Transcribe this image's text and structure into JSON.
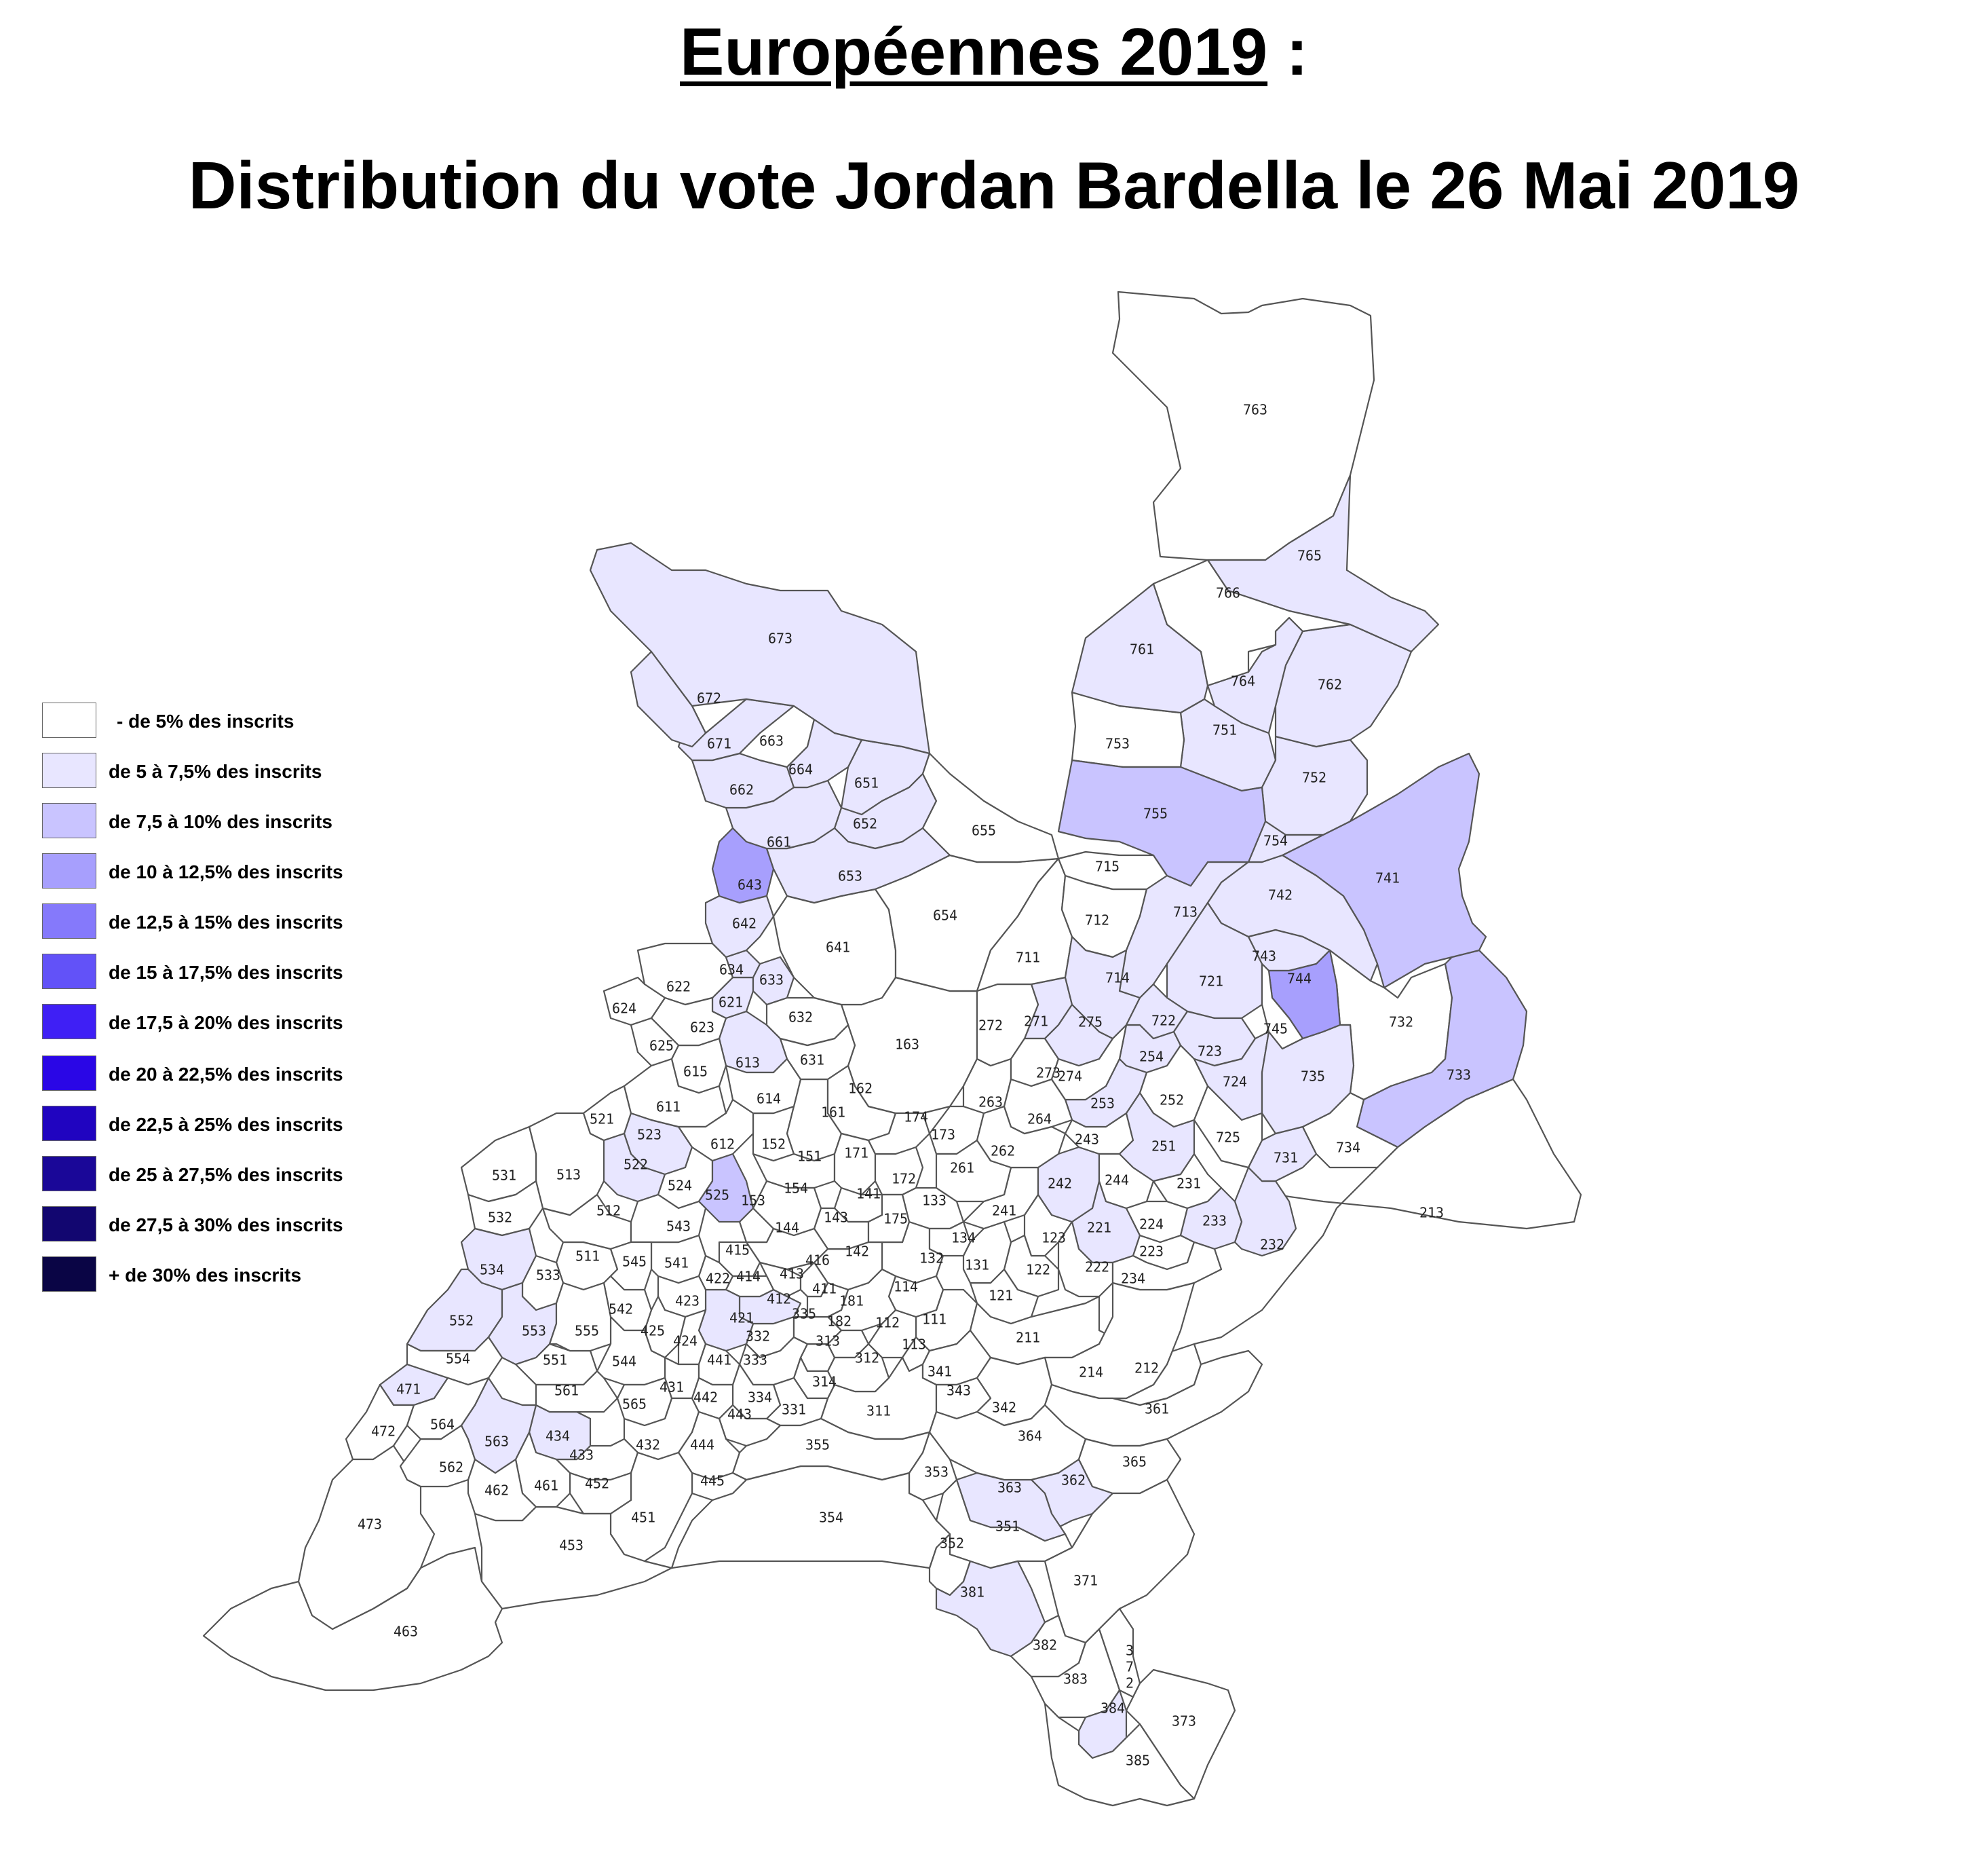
{
  "title": {
    "line1_main": "Européennes 2019",
    "line1_suffix": " :",
    "line2": "Distribution du vote Jordan Bardella le 26 Mai 2019"
  },
  "colors": {
    "c0": "#ffffff",
    "c1": "#e8e6ff",
    "c2": "#c9c4ff",
    "c3": "#a79ffd",
    "c4": "#8579fb",
    "c5": "#6252f8",
    "c6": "#3f1ff5",
    "c7": "#2a06e6",
    "c8": "#2004c0",
    "c9": "#1a0798",
    "c10": "#120670",
    "c11": "#0a0545"
  },
  "legend": [
    {
      "label": "- de 5% des inscrits",
      "color": "#ffffff"
    },
    {
      "label": "de 5 à 7,5% des inscrits",
      "color": "#e8e6ff"
    },
    {
      "label": "de 7,5 à 10% des inscrits",
      "color": "#c9c4ff"
    },
    {
      "label": "de 10 à 12,5% des inscrits",
      "color": "#a79ffd"
    },
    {
      "label": "de 12,5 à 15% des inscrits",
      "color": "#8579fb"
    },
    {
      "label": "de 15 à 17,5% des inscrits",
      "color": "#6252f8"
    },
    {
      "label": "de 17,5 à 20% des inscrits",
      "color": "#3f1ff5"
    },
    {
      "label": "de 20 à 22,5% des inscrits",
      "color": "#2a06e6"
    },
    {
      "label": "de 22,5 à 25% des inscrits",
      "color": "#2004c0"
    },
    {
      "label": "de 25 à 27,5% des inscrits",
      "color": "#1a0798"
    },
    {
      "label": "de 27,5 à 30% des inscrits",
      "color": "#120670"
    },
    {
      "label": "+ de 30% des inscrits",
      "color": "#0a0545"
    }
  ],
  "bureaux": {
    "763": {
      "l": "763",
      "c": 0
    },
    "765": {
      "l": "765",
      "c": 1
    },
    "766": {
      "l": "766",
      "c": 0
    },
    "761": {
      "l": "761",
      "c": 1
    },
    "764": {
      "l": "764",
      "c": 1
    },
    "762": {
      "l": "762",
      "c": 1
    },
    "753": {
      "l": "753",
      "c": 0
    },
    "751": {
      "l": "751",
      "c": 1
    },
    "752": {
      "l": "752",
      "c": 1
    },
    "755": {
      "l": "755",
      "c": 2
    },
    "754": {
      "l": "754",
      "c": 1
    },
    "741": {
      "l": "741",
      "c": 2
    },
    "742": {
      "l": "742",
      "c": 1
    },
    "715": {
      "l": "715",
      "c": 0
    },
    "713": {
      "l": "713",
      "c": 1
    },
    "712": {
      "l": "712",
      "c": 0
    },
    "711": {
      "l": "711",
      "c": 0
    },
    "714": {
      "l": "714",
      "c": 1
    },
    "721": {
      "l": "721",
      "c": 1
    },
    "743": {
      "l": "743",
      "c": 1
    },
    "744": {
      "l": "744",
      "c": 3
    },
    "745": {
      "l": "745",
      "c": 0
    },
    "732": {
      "l": "732",
      "c": 0
    },
    "733": {
      "l": "733",
      "c": 2
    },
    "722": {
      "l": "722",
      "c": 1
    },
    "723": {
      "l": "723",
      "c": 1
    },
    "724": {
      "l": "724",
      "c": 1
    },
    "735": {
      "l": "735",
      "c": 1
    },
    "725": {
      "l": "725",
      "c": 0
    },
    "731": {
      "l": "731",
      "c": 1
    },
    "734": {
      "l": "734",
      "c": 0
    },
    "213": {
      "l": "213",
      "c": 0
    },
    "673": {
      "l": "673",
      "c": 1
    },
    "672": {
      "l": "672",
      "c": 1
    },
    "671": {
      "l": "671",
      "c": 1
    },
    "663": {
      "l": "663",
      "c": 0
    },
    "664": {
      "l": "664",
      "c": 1
    },
    "662": {
      "l": "662",
      "c": 1
    },
    "651": {
      "l": "651",
      "c": 1
    },
    "652": {
      "l": "652",
      "c": 1
    },
    "655": {
      "l": "655",
      "c": 0
    },
    "661": {
      "l": "661",
      "c": 1
    },
    "643": {
      "l": "643",
      "c": 3
    },
    "653": {
      "l": "653",
      "c": 1
    },
    "654": {
      "l": "654",
      "c": 0
    },
    "642": {
      "l": "642",
      "c": 1
    },
    "641": {
      "l": "641",
      "c": 0
    },
    "634": {
      "l": "634",
      "c": 1
    },
    "633": {
      "l": "633",
      "c": 1
    },
    "622": {
      "l": "622",
      "c": 0
    },
    "621": {
      "l": "621",
      "c": 1
    },
    "632": {
      "l": "632",
      "c": 0
    },
    "624": {
      "l": "624",
      "c": 0
    },
    "623": {
      "l": "623",
      "c": 0
    },
    "625": {
      "l": "625",
      "c": 0
    },
    "613": {
      "l": "613",
      "c": 1
    },
    "631": {
      "l": "631",
      "c": 0
    },
    "615": {
      "l": "615",
      "c": 0
    },
    "614": {
      "l": "614",
      "c": 0
    },
    "163": {
      "l": "163",
      "c": 0
    },
    "162": {
      "l": "162",
      "c": 0
    },
    "611": {
      "l": "611",
      "c": 0
    },
    "161": {
      "l": "161",
      "c": 0
    },
    "272": {
      "l": "272",
      "c": 0
    },
    "271": {
      "l": "271",
      "c": 1
    },
    "275": {
      "l": "275",
      "c": 1
    },
    "273": {
      "l": "273",
      "c": 0
    },
    "274": {
      "l": "274",
      "c": 0
    },
    "254": {
      "l": "254",
      "c": 1
    },
    "252": {
      "l": "252",
      "c": 0
    },
    "253": {
      "l": "253",
      "c": 1
    },
    "263": {
      "l": "263",
      "c": 0
    },
    "264": {
      "l": "264",
      "c": 0
    },
    "243": {
      "l": "243",
      "c": 0
    },
    "251": {
      "l": "251",
      "c": 1
    },
    "521": {
      "l": "521",
      "c": 0
    },
    "523": {
      "l": "523",
      "c": 1
    },
    "612": {
      "l": "612",
      "c": 0
    },
    "152": {
      "l": "152",
      "c": 0
    },
    "174": {
      "l": "174",
      "c": 0
    },
    "173": {
      "l": "173",
      "c": 0
    },
    "262": {
      "l": "262",
      "c": 0
    },
    "531": {
      "l": "531",
      "c": 0
    },
    "513": {
      "l": "513",
      "c": 0
    },
    "522": {
      "l": "522",
      "c": 1
    },
    "151": {
      "l": "151",
      "c": 0
    },
    "171": {
      "l": "171",
      "c": 0
    },
    "261": {
      "l": "261",
      "c": 0
    },
    "231": {
      "l": "231",
      "c": 0
    },
    "524": {
      "l": "524",
      "c": 0
    },
    "525": {
      "l": "525",
      "c": 2
    },
    "154": {
      "l": "154",
      "c": 0
    },
    "172": {
      "l": "172",
      "c": 0
    },
    "141": {
      "l": "141",
      "c": 0
    },
    "153": {
      "l": "153",
      "c": 0
    },
    "133": {
      "l": "133",
      "c": 0
    },
    "242": {
      "l": "242",
      "c": 1
    },
    "244": {
      "l": "244",
      "c": 0
    },
    "532": {
      "l": "532",
      "c": 0
    },
    "512": {
      "l": "512",
      "c": 0
    },
    "143": {
      "l": "143",
      "c": 0
    },
    "175": {
      "l": "175",
      "c": 0
    },
    "241": {
      "l": "241",
      "c": 0
    },
    "224": {
      "l": "224",
      "c": 0
    },
    "233": {
      "l": "233",
      "c": 1
    },
    "232": {
      "l": "232",
      "c": 1
    },
    "543": {
      "l": "543",
      "c": 0
    },
    "144": {
      "l": "144",
      "c": 0
    },
    "221": {
      "l": "221",
      "c": 1
    },
    "534": {
      "l": "534",
      "c": 1
    },
    "511": {
      "l": "511",
      "c": 0
    },
    "545": {
      "l": "545",
      "c": 0
    },
    "541": {
      "l": "541",
      "c": 0
    },
    "415": {
      "l": "415",
      "c": 0
    },
    "142": {
      "l": "142",
      "c": 0
    },
    "134": {
      "l": "134",
      "c": 0
    },
    "123": {
      "l": "123",
      "c": 0
    },
    "132": {
      "l": "132",
      "c": 0
    },
    "131": {
      "l": "131",
      "c": 0
    },
    "223": {
      "l": "223",
      "c": 0
    },
    "533": {
      "l": "533",
      "c": 0
    },
    "422": {
      "l": "422",
      "c": 0
    },
    "414": {
      "l": "414",
      "c": 0
    },
    "413": {
      "l": "413",
      "c": 0
    },
    "416": {
      "l": "416",
      "c": 0
    },
    "122": {
      "l": "122",
      "c": 0
    },
    "222": {
      "l": "222",
      "c": 0
    },
    "234": {
      "l": "234",
      "c": 0
    },
    "423": {
      "l": "423",
      "c": 0
    },
    "411": {
      "l": "411",
      "c": 0
    },
    "114": {
      "l": "114",
      "c": 0
    },
    "121": {
      "l": "121",
      "c": 0
    },
    "542": {
      "l": "542",
      "c": 0
    },
    "412": {
      "l": "412",
      "c": 1
    },
    "181": {
      "l": "181",
      "c": 0
    },
    "552": {
      "l": "552",
      "c": 1
    },
    "553": {
      "l": "553",
      "c": 1
    },
    "555": {
      "l": "555",
      "c": 0
    },
    "421": {
      "l": "421",
      "c": 1
    },
    "335": {
      "l": "335",
      "c": 0
    },
    "182": {
      "l": "182",
      "c": 0
    },
    "112": {
      "l": "112",
      "c": 0
    },
    "111": {
      "l": "111",
      "c": 0
    },
    "425": {
      "l": "425",
      "c": 0
    },
    "424": {
      "l": "424",
      "c": 0
    },
    "332": {
      "l": "332",
      "c": 0
    },
    "313": {
      "l": "313",
      "c": 0
    },
    "113": {
      "l": "113",
      "c": 0
    },
    "211": {
      "l": "211",
      "c": 0
    },
    "554": {
      "l": "554",
      "c": 0
    },
    "551": {
      "l": "551",
      "c": 0
    },
    "544": {
      "l": "544",
      "c": 0
    },
    "441": {
      "l": "441",
      "c": 0
    },
    "333": {
      "l": "333",
      "c": 0
    },
    "312": {
      "l": "312",
      "c": 0
    },
    "341": {
      "l": "341",
      "c": 0
    },
    "214": {
      "l": "214",
      "c": 0
    },
    "212": {
      "l": "212",
      "c": 0
    },
    "471": {
      "l": "471",
      "c": 1
    },
    "561": {
      "l": "561",
      "c": 0
    },
    "431": {
      "l": "431",
      "c": 0
    },
    "442": {
      "l": "442",
      "c": 0
    },
    "334": {
      "l": "334",
      "c": 0
    },
    "314": {
      "l": "314",
      "c": 0
    },
    "343": {
      "l": "343",
      "c": 0
    },
    "565": {
      "l": "565",
      "c": 0
    },
    "331": {
      "l": "331",
      "c": 0
    },
    "311": {
      "l": "311",
      "c": 0
    },
    "342": {
      "l": "342",
      "c": 0
    },
    "361": {
      "l": "361",
      "c": 0
    },
    "472": {
      "l": "472",
      "c": 0
    },
    "564": {
      "l": "564",
      "c": 0
    },
    "443": {
      "l": "443",
      "c": 0
    },
    "563": {
      "l": "563",
      "c": 1
    },
    "434": {
      "l": "434",
      "c": 1
    },
    "364": {
      "l": "364",
      "c": 0
    },
    "432": {
      "l": "432",
      "c": 0
    },
    "444": {
      "l": "444",
      "c": 0
    },
    "355": {
      "l": "355",
      "c": 0
    },
    "433": {
      "l": "433",
      "c": 0
    },
    "562": {
      "l": "562",
      "c": 0
    },
    "365": {
      "l": "365",
      "c": 0
    },
    "353": {
      "l": "353",
      "c": 0
    },
    "363": {
      "l": "363",
      "c": 1
    },
    "362": {
      "l": "362",
      "c": 1
    },
    "461": {
      "l": "461",
      "c": 0
    },
    "452": {
      "l": "452",
      "c": 0
    },
    "445": {
      "l": "445",
      "c": 0
    },
    "462": {
      "l": "462",
      "c": 0
    },
    "473": {
      "l": "473",
      "c": 0
    },
    "451": {
      "l": "451",
      "c": 0
    },
    "354": {
      "l": "354",
      "c": 0
    },
    "351": {
      "l": "351",
      "c": 0
    },
    "352": {
      "l": "352",
      "c": 0
    },
    "453": {
      "l": "453",
      "c": 0
    },
    "371": {
      "l": "371",
      "c": 0
    },
    "381": {
      "l": "381",
      "c": 1
    },
    "463": {
      "l": "463",
      "c": 0
    },
    "382": {
      "l": "382",
      "c": 0
    },
    "372": {
      "l": "372",
      "c": 0
    },
    "383": {
      "l": "383",
      "c": 0
    },
    "384": {
      "l": "384",
      "c": 1
    },
    "373": {
      "l": "373",
      "c": 0
    },
    "385": {
      "l": "385",
      "c": 0
    }
  }
}
